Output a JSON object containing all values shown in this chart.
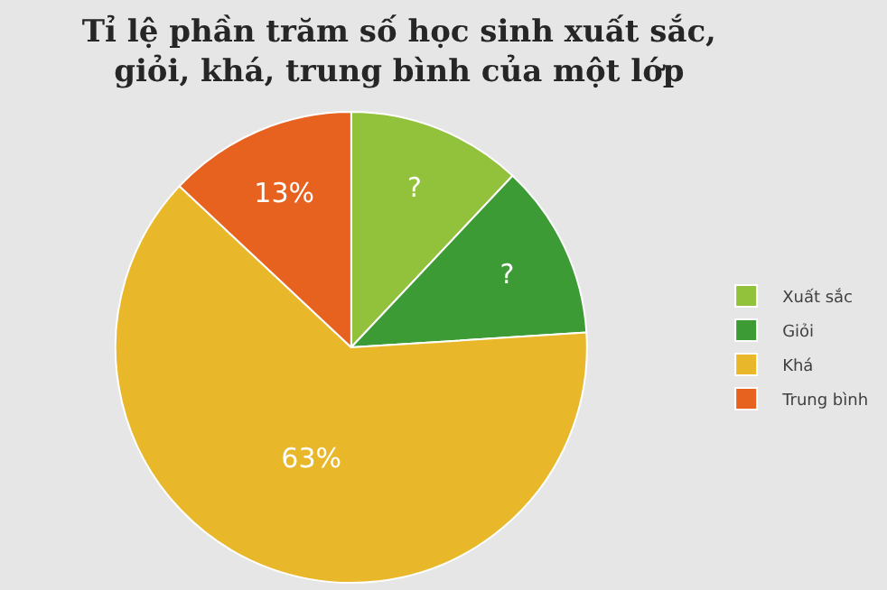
{
  "chart_data": {
    "type": "pie",
    "title": "Tỉ lệ phần trăm số học sinh xuất sắc,\ngiỏi, khá, trung bình của một lớp",
    "categories": [
      "Xuất sắc",
      "Giỏi",
      "Khá",
      "Trung bình"
    ],
    "values": [
      12,
      12,
      63,
      13
    ],
    "value_labels": [
      "?",
      "?",
      "63%",
      "13%"
    ],
    "colors": [
      "#92c13b",
      "#3d9b35",
      "#e8b82a",
      "#e6621e"
    ],
    "legend": "right"
  }
}
